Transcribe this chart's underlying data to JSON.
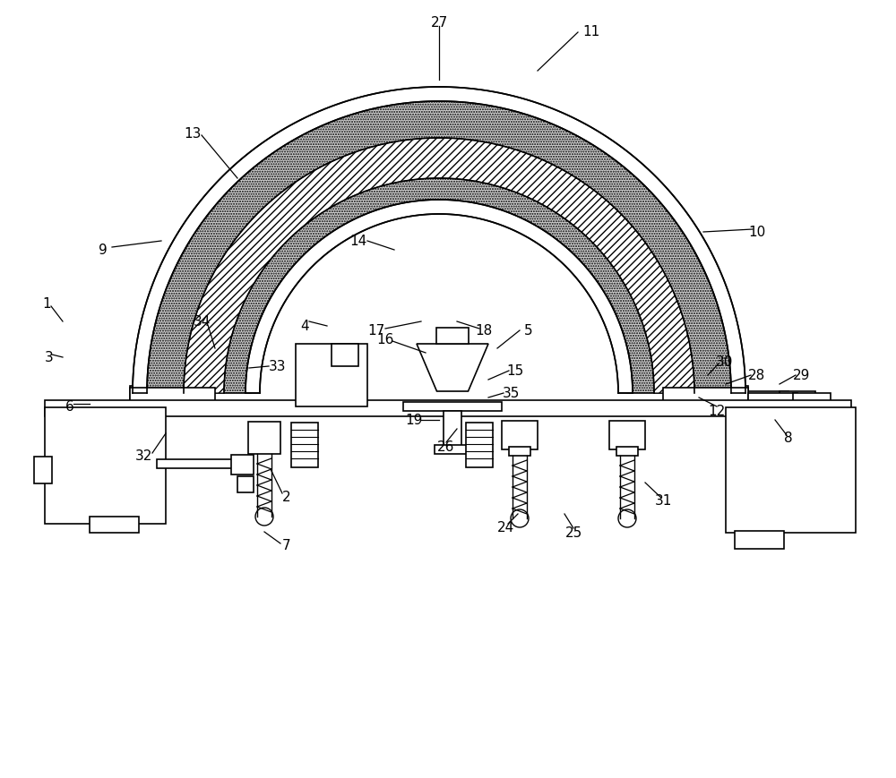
{
  "bg_color": "#ffffff",
  "line_color": "#000000",
  "hatch_color": "#888888",
  "title": "",
  "fig_width": 10.0,
  "fig_height": 8.7,
  "dpi": 100
}
